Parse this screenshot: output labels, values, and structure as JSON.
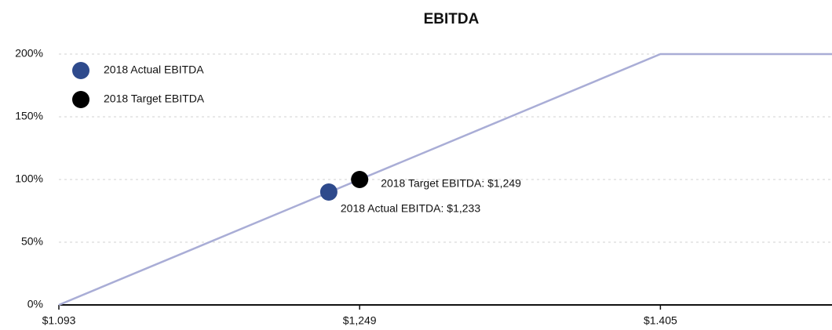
{
  "chart_data": {
    "type": "scatter",
    "title": "EBITDA",
    "xlim": [
      1093,
      1494
    ],
    "xticks": [
      {
        "value": 1093,
        "label": "$1.093"
      },
      {
        "value": 1249,
        "label": "$1,249"
      },
      {
        "value": 1405,
        "label": "$1.405"
      }
    ],
    "ylim": [
      0,
      200
    ],
    "yticks": [
      {
        "value": 0,
        "label": "0%"
      },
      {
        "value": 50,
        "label": "50%"
      },
      {
        "value": 100,
        "label": "100%"
      },
      {
        "value": 150,
        "label": "150%"
      },
      {
        "value": 200,
        "label": "200%"
      }
    ],
    "grid": true,
    "legend": "upper left",
    "line": {
      "color": "#a9add6",
      "x": [
        1093,
        1405,
        1494
      ],
      "values": [
        0,
        200,
        200
      ]
    },
    "series": [
      {
        "name": "2018 Actual EBITDA",
        "color": "#2e4a8c",
        "x": [
          1233
        ],
        "values": [
          90
        ],
        "annotation": "2018 Actual EBITDA: $1,233"
      },
      {
        "name": "2018 Target EBITDA",
        "color": "#000000",
        "x": [
          1249
        ],
        "values": [
          100
        ],
        "annotation": "2018 Target EBITDA: $1,249"
      }
    ]
  }
}
